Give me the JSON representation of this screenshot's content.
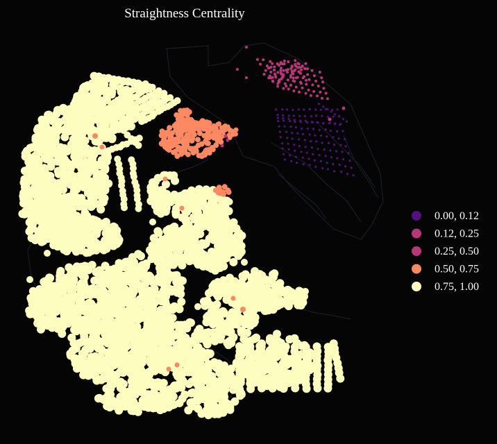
{
  "chart_data": {
    "type": "scatter",
    "title": "Straightness Centrality",
    "background_color": "#050505",
    "edge_color": "#1b2230",
    "legend_placement": "center-right",
    "grid": false,
    "axes_visible": false,
    "legend": [
      {
        "label": "0.00, 0.12",
        "color": "#52127c"
      },
      {
        "label": "0.12, 0.25",
        "color": "#b73779"
      },
      {
        "label": "0.25, 0.50",
        "color": "#b73779"
      },
      {
        "label": "0.50, 0.75",
        "color": "#fc8961"
      },
      {
        "label": "0.75, 1.00",
        "color": "#fcfdbf"
      }
    ],
    "series": [
      {
        "label": "0.00, 0.12",
        "color": "#52127c",
        "approx_share": 0.05
      },
      {
        "label": "0.12, 0.25",
        "color": "#b73779",
        "approx_share": 0.03
      },
      {
        "label": "0.25, 0.50",
        "color": "#b73779",
        "approx_share": 0.01
      },
      {
        "label": "0.50, 0.75",
        "color": "#fc8961",
        "approx_share": 0.07
      },
      {
        "label": "0.75, 1.00",
        "color": "#fcfdbf",
        "approx_share": 0.84
      }
    ]
  }
}
